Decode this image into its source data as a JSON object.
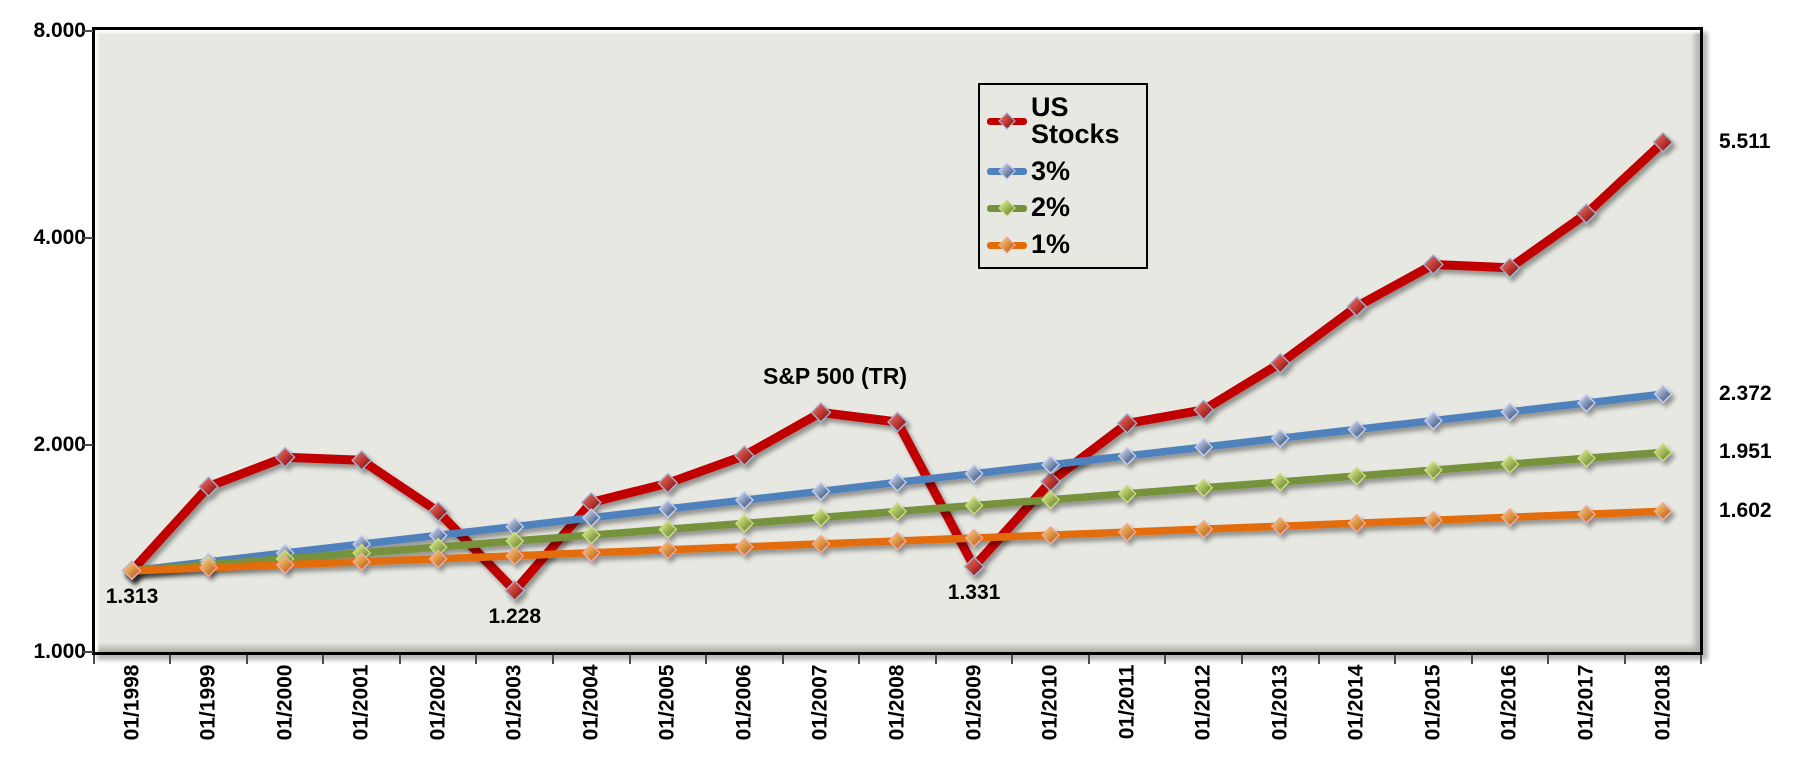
{
  "chart_data": {
    "type": "line",
    "title_annotation": "S&P 500 (TR)",
    "y_axis": {
      "scale": "log2",
      "ticks": [
        {
          "v": 1,
          "label": "1.000"
        },
        {
          "v": 2,
          "label": "2.000"
        },
        {
          "v": 4,
          "label": "4.000"
        },
        {
          "v": 8,
          "label": "8.000"
        }
      ],
      "range": [
        1.0,
        8.0
      ]
    },
    "categories": [
      "01/1998",
      "01/1999",
      "01/2000",
      "01/2001",
      "01/2002",
      "01/2003",
      "01/2004",
      "01/2005",
      "01/2006",
      "01/2007",
      "01/2008",
      "01/2009",
      "01/2010",
      "01/2011",
      "01/2012",
      "01/2013",
      "01/2014",
      "01/2015",
      "01/2016",
      "01/2017",
      "01/2018"
    ],
    "series": [
      {
        "name": "US Stocks",
        "color": "#C00000",
        "values": [
          1.313,
          1.74,
          1.92,
          1.9,
          1.6,
          1.228,
          1.65,
          1.76,
          1.93,
          2.23,
          2.16,
          1.331,
          1.77,
          2.15,
          2.25,
          2.63,
          3.18,
          3.66,
          3.62,
          4.34,
          5.511
        ]
      },
      {
        "name": "3%",
        "color": "#4F81BD",
        "values": [
          1.313,
          1.352,
          1.393,
          1.435,
          1.478,
          1.522,
          1.568,
          1.615,
          1.663,
          1.713,
          1.765,
          1.817,
          1.872,
          1.928,
          1.986,
          2.046,
          2.107,
          2.17,
          2.235,
          2.302,
          2.372
        ]
      },
      {
        "name": "2%",
        "color": "#76923C",
        "values": [
          1.313,
          1.339,
          1.366,
          1.393,
          1.421,
          1.45,
          1.479,
          1.508,
          1.538,
          1.569,
          1.601,
          1.633,
          1.665,
          1.699,
          1.733,
          1.767,
          1.803,
          1.839,
          1.876,
          1.913,
          1.951
        ]
      },
      {
        "name": "1%",
        "color": "#E36C09",
        "values": [
          1.313,
          1.326,
          1.339,
          1.353,
          1.366,
          1.38,
          1.394,
          1.408,
          1.422,
          1.436,
          1.45,
          1.465,
          1.479,
          1.494,
          1.509,
          1.524,
          1.539,
          1.555,
          1.57,
          1.586,
          1.602
        ]
      }
    ],
    "legend": {
      "position": "top-center",
      "items": [
        "US Stocks",
        "3%",
        "2%",
        "1%"
      ]
    },
    "annotations": {
      "point_labels": [
        {
          "series": 0,
          "index": 0,
          "text": "1.313"
        },
        {
          "series": 0,
          "index": 5,
          "text": "1.228"
        },
        {
          "series": 0,
          "index": 11,
          "text": "1.331"
        }
      ],
      "end_labels": [
        {
          "series": 0,
          "text": "5.511"
        },
        {
          "series": 1,
          "text": "2.372"
        },
        {
          "series": 2,
          "text": "1.951"
        },
        {
          "series": 3,
          "text": "1.602"
        }
      ]
    },
    "plot_background": "#E8E8E2",
    "grid": "off"
  }
}
